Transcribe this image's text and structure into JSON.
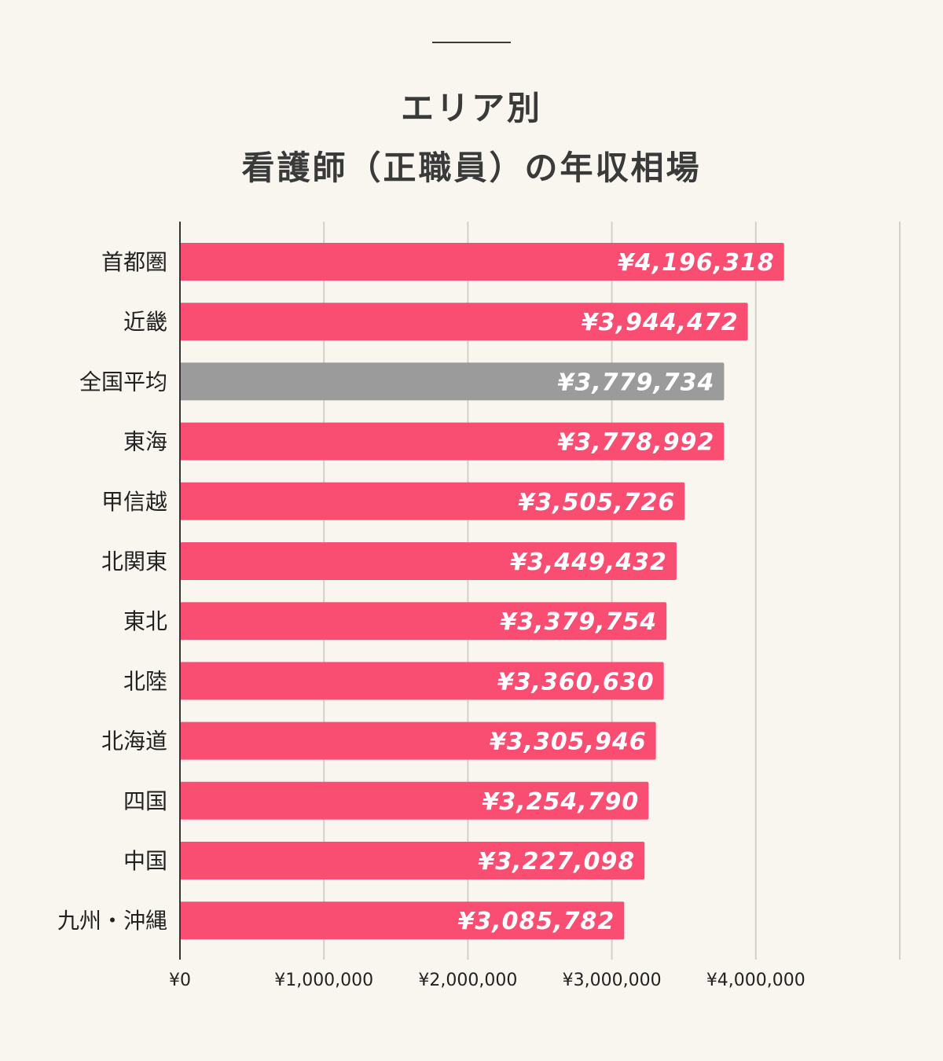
{
  "title_line1": "エリア別",
  "title_line2": "看護師（正職員）の年収相場",
  "chart_data": {
    "type": "bar",
    "orientation": "horizontal",
    "categories": [
      "首都圏",
      "近畿",
      "全国平均",
      "東海",
      "甲信越",
      "北関東",
      "東北",
      "北陸",
      "北海道",
      "四国",
      "中国",
      "九州・沖縄"
    ],
    "values": [
      4196318,
      3944472,
      3779734,
      3778992,
      3505726,
      3449432,
      3379754,
      3360630,
      3305946,
      3254790,
      3227098,
      3085782
    ],
    "value_labels": [
      "¥4,196,318",
      "¥3,944,472",
      "¥3,779,734",
      "¥3,778,992",
      "¥3,505,726",
      "¥3,449,432",
      "¥3,379,754",
      "¥3,360,630",
      "¥3,305,946",
      "¥3,254,790",
      "¥3,227,098",
      "¥3,085,782"
    ],
    "highlight_category": "全国平均",
    "xlim": [
      0,
      5000000
    ],
    "xticks": [
      0,
      1000000,
      2000000,
      3000000,
      4000000
    ],
    "xtick_labels": [
      "¥0",
      "¥1,000,000",
      "¥2,000,000",
      "¥3,000,000",
      "¥4,000,000"
    ],
    "grid": true,
    "colors": {
      "bar": "#f94d72",
      "highlight_bar": "#9b9b9b",
      "gridline": "#d3d0ca",
      "axis": "#333333",
      "background": "#f9f6f0"
    }
  }
}
